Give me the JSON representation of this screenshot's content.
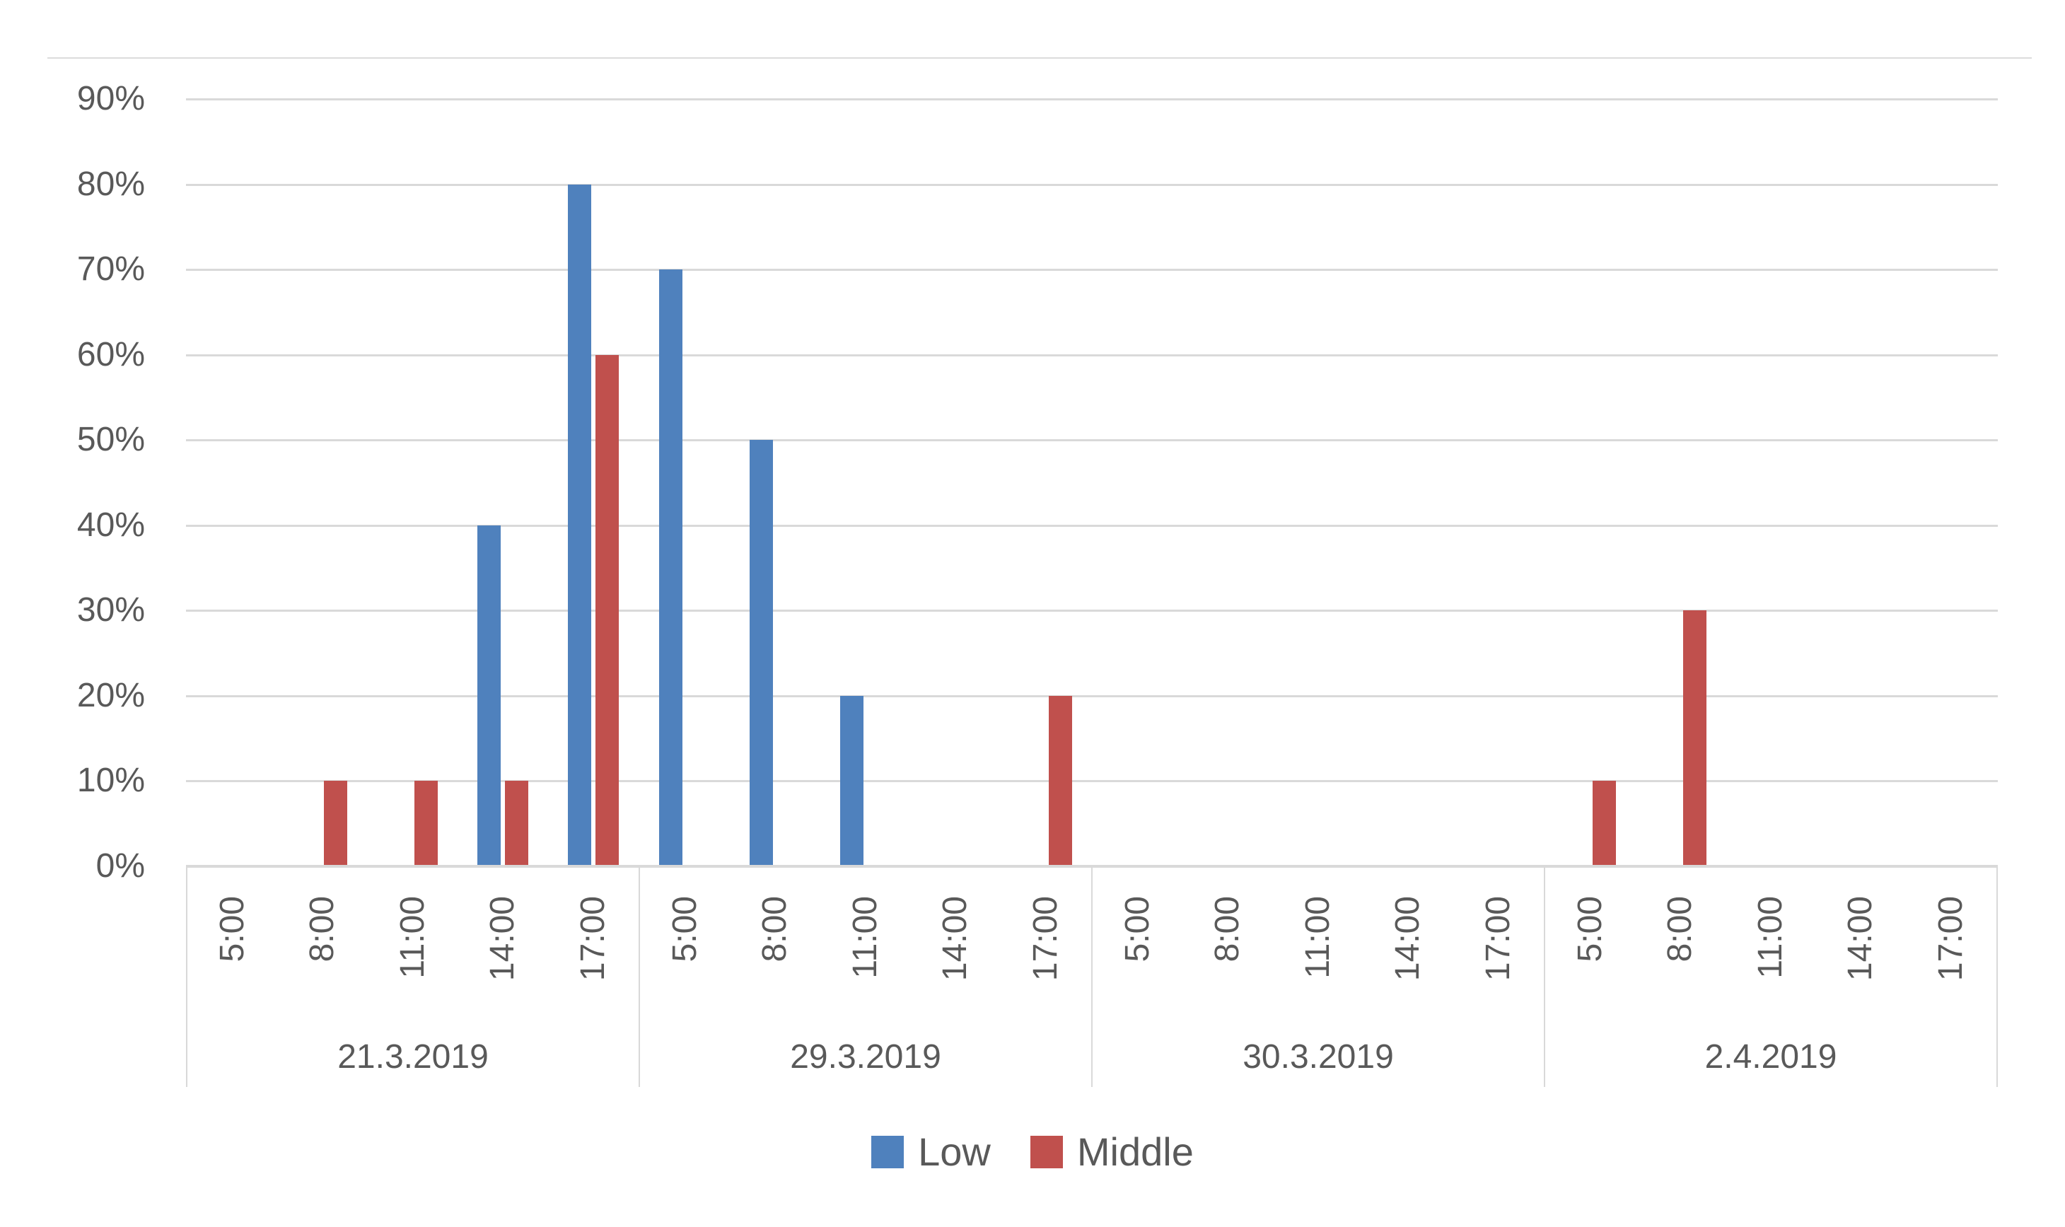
{
  "chart_data": {
    "type": "bar",
    "title": "",
    "y_axis": {
      "min": 0,
      "max": 90,
      "step": 10,
      "tick_suffix": "%",
      "labels": [
        "90%",
        "80%",
        "70%",
        "60%",
        "50%",
        "40%",
        "30%",
        "20%",
        "10%",
        "0%"
      ],
      "grid": true
    },
    "x_axis": {
      "times": [
        "5:00",
        "8:00",
        "11:00",
        "14:00",
        "17:00"
      ],
      "dates": [
        "21.3.2019",
        "29.3.2019",
        "30.3.2019",
        "2.4.2019"
      ]
    },
    "series": [
      {
        "name": "Low",
        "color": "#4F81BD",
        "values": [
          [
            null,
            null,
            null,
            40,
            80
          ],
          [
            70,
            50,
            20,
            null,
            null
          ],
          [
            null,
            null,
            null,
            null,
            null
          ],
          [
            null,
            null,
            null,
            null,
            null
          ]
        ]
      },
      {
        "name": "Middle",
        "color": "#C0504D",
        "values": [
          [
            null,
            10,
            10,
            10,
            60
          ],
          [
            null,
            null,
            null,
            null,
            20
          ],
          [
            null,
            null,
            null,
            null,
            null
          ],
          [
            10,
            30,
            null,
            null,
            null
          ]
        ]
      }
    ],
    "legend": {
      "position": "bottom",
      "items": [
        {
          "label": "Low",
          "color": "#4F81BD"
        },
        {
          "label": "Middle",
          "color": "#C0504D"
        }
      ]
    },
    "colors": {
      "gridline": "#D9D9D9",
      "axis_line": "#D9D9D9",
      "text": "#595959",
      "chart_border": "#DCDCDC"
    }
  }
}
